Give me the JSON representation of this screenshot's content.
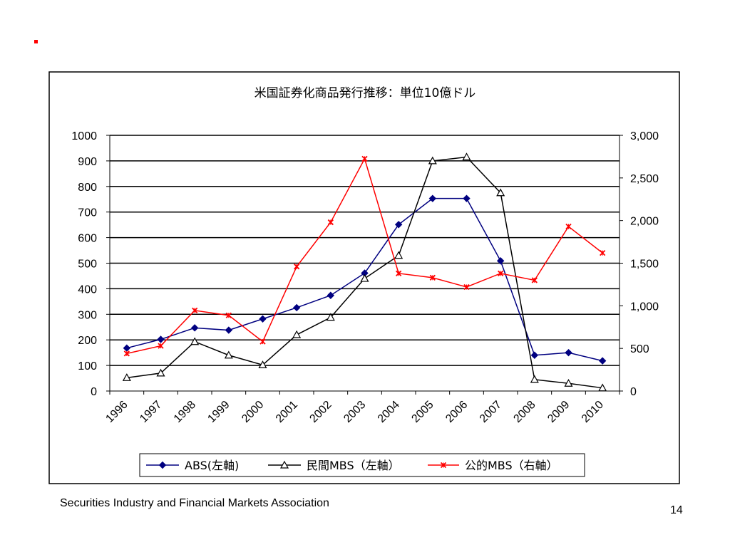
{
  "slide": {
    "bullet_color": "#ff0000",
    "source": "Securities Industry and Financial Markets Association",
    "page_number": "14"
  },
  "chart_data": {
    "type": "line",
    "title": "米国証券化商品発行推移：単位10億ドル",
    "categories": [
      "1996",
      "1997",
      "1998",
      "1999",
      "2000",
      "2001",
      "2002",
      "2003",
      "2004",
      "2005",
      "2006",
      "2007",
      "2008",
      "2009",
      "2010"
    ],
    "y_left": {
      "ylim": [
        0,
        1000
      ],
      "ticks": [
        "0",
        "100",
        "200",
        "300",
        "400",
        "500",
        "600",
        "700",
        "800",
        "900",
        "1000"
      ]
    },
    "y_right": {
      "ylim": [
        0,
        3000
      ],
      "ticks": [
        "0",
        "500",
        "1,000",
        "1,500",
        "2,000",
        "2,500",
        "3,000"
      ]
    },
    "grid": true,
    "legend_position": "bottom",
    "series": [
      {
        "name": "ABS(左軸)",
        "axis": "left",
        "color": "#000080",
        "marker": "diamond",
        "values": [
          168,
          202,
          247,
          238,
          282,
          326,
          374,
          461,
          651,
          753,
          753,
          509,
          140,
          150,
          118
        ]
      },
      {
        "name": "民間MBS（左軸）",
        "axis": "left",
        "color": "#000000",
        "marker": "triangle",
        "values": [
          52,
          70,
          193,
          140,
          102,
          220,
          288,
          440,
          530,
          900,
          915,
          775,
          45,
          30,
          12
        ]
      },
      {
        "name": "公的MBS（右軸）",
        "axis": "right",
        "color": "#ff0000",
        "marker": "x",
        "values": [
          440,
          530,
          945,
          888,
          580,
          1460,
          1980,
          2725,
          1380,
          1330,
          1220,
          1380,
          1300,
          1930,
          1620
        ]
      }
    ]
  }
}
